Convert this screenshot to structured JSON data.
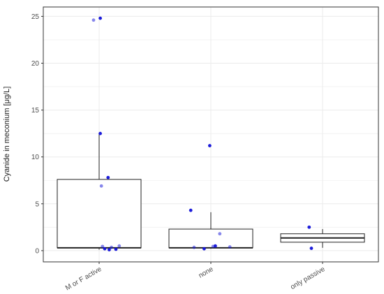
{
  "chart_data": {
    "type": "box",
    "title": "",
    "xlabel": "",
    "ylabel": "Cyanide in meconium [μg/L]",
    "ylim": [
      -1.2,
      26.0
    ],
    "yticks": [
      0,
      5,
      10,
      15,
      20,
      25
    ],
    "grid": true,
    "categories": [
      "M or F active",
      "none",
      "only passive"
    ],
    "boxes": [
      {
        "category": "M or F active",
        "whisker_low": 0.1,
        "q1": 0.3,
        "median": 0.3,
        "q3": 7.6,
        "whisker_high": 12.6
      },
      {
        "category": "none",
        "whisker_low": 0.2,
        "q1": 0.3,
        "median": 0.3,
        "q3": 2.3,
        "whisker_high": 4.1
      },
      {
        "category": "only passive",
        "whisker_low": 0.3,
        "q1": 0.9,
        "median": 1.35,
        "q3": 1.8,
        "whisker_high": 2.3
      }
    ],
    "points": [
      {
        "category": "M or F active",
        "offset": -0.05,
        "y": 24.6,
        "alpha": 0.5
      },
      {
        "category": "M or F active",
        "offset": 0.01,
        "y": 24.8,
        "alpha": 0.95
      },
      {
        "category": "M or F active",
        "offset": 0.01,
        "y": 12.5,
        "alpha": 0.95
      },
      {
        "category": "M or F active",
        "offset": 0.08,
        "y": 7.8,
        "alpha": 0.95
      },
      {
        "category": "M or F active",
        "offset": 0.02,
        "y": 6.9,
        "alpha": 0.5
      },
      {
        "category": "M or F active",
        "offset": 0.03,
        "y": 0.45,
        "alpha": 0.5
      },
      {
        "category": "M or F active",
        "offset": 0.11,
        "y": 0.35,
        "alpha": 0.5
      },
      {
        "category": "M or F active",
        "offset": 0.18,
        "y": 0.5,
        "alpha": 0.5
      },
      {
        "category": "M or F active",
        "offset": 0.05,
        "y": 0.2,
        "alpha": 0.95
      },
      {
        "category": "M or F active",
        "offset": 0.09,
        "y": 0.1,
        "alpha": 0.95
      },
      {
        "category": "M or F active",
        "offset": 0.15,
        "y": 0.15,
        "alpha": 0.95
      },
      {
        "category": "none",
        "offset": -0.01,
        "y": 11.2,
        "alpha": 0.95
      },
      {
        "category": "none",
        "offset": -0.18,
        "y": 4.3,
        "alpha": 0.95
      },
      {
        "category": "none",
        "offset": 0.08,
        "y": 1.8,
        "alpha": 0.5
      },
      {
        "category": "none",
        "offset": -0.15,
        "y": 0.35,
        "alpha": 0.5
      },
      {
        "category": "none",
        "offset": -0.06,
        "y": 0.2,
        "alpha": 0.95
      },
      {
        "category": "none",
        "offset": 0.02,
        "y": 0.45,
        "alpha": 0.5
      },
      {
        "category": "none",
        "offset": 0.04,
        "y": 0.5,
        "alpha": 0.95
      },
      {
        "category": "none",
        "offset": 0.17,
        "y": 0.4,
        "alpha": 0.5
      },
      {
        "category": "only passive",
        "offset": -0.12,
        "y": 2.5,
        "alpha": 0.95
      },
      {
        "category": "only passive",
        "offset": -0.1,
        "y": 0.25,
        "alpha": 0.95
      }
    ],
    "colors": {
      "points": "#1010d8",
      "box_stroke": "#222222",
      "grid": "#ebebeb",
      "panel_border": "#333333",
      "tick_text": "#4d4d4d",
      "axis_title": "#222222"
    }
  }
}
